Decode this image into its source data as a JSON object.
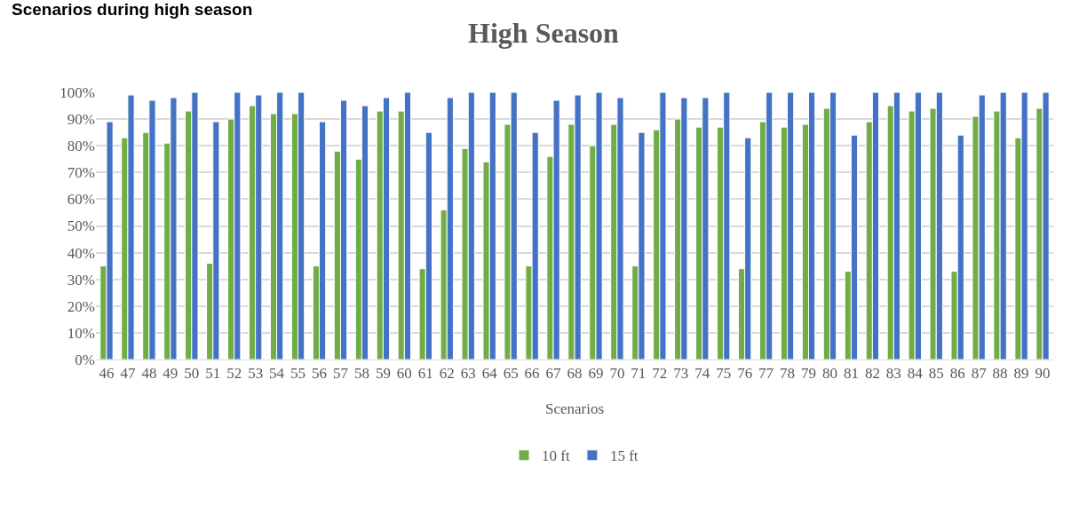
{
  "chart_data": {
    "type": "bar",
    "title": "High Season",
    "xlabel": "Scenarios",
    "annotations": [
      "Scenarios during high season"
    ],
    "categories": [
      "46",
      "47",
      "48",
      "49",
      "50",
      "51",
      "52",
      "53",
      "54",
      "55",
      "56",
      "57",
      "58",
      "59",
      "60",
      "61",
      "62",
      "63",
      "64",
      "65",
      "66",
      "67",
      "68",
      "69",
      "70",
      "71",
      "72",
      "73",
      "74",
      "75",
      "76",
      "77",
      "78",
      "79",
      "80",
      "81",
      "82",
      "83",
      "84",
      "85",
      "86",
      "87",
      "88",
      "89",
      "90"
    ],
    "series": [
      {
        "name": "10 ft",
        "color": "#70ad47",
        "values": [
          35,
          83,
          85,
          81,
          93,
          36,
          90,
          95,
          92,
          92,
          35,
          78,
          75,
          93,
          93,
          34,
          56,
          79,
          74,
          88,
          35,
          76,
          88,
          80,
          88,
          35,
          86,
          90,
          87,
          87,
          34,
          89,
          87,
          88,
          94,
          33,
          89,
          95,
          93,
          94,
          33,
          91,
          93,
          83,
          94
        ]
      },
      {
        "name": "15 ft",
        "color": "#4472c4",
        "values": [
          89,
          99,
          97,
          98,
          100,
          89,
          100,
          99,
          100,
          100,
          89,
          97,
          95,
          98,
          100,
          85,
          98,
          100,
          100,
          100,
          85,
          97,
          99,
          100,
          98,
          85,
          100,
          98,
          98,
          100,
          83,
          100,
          100,
          100,
          100,
          84,
          100,
          100,
          100,
          100,
          84,
          99,
          100,
          100,
          100
        ]
      }
    ],
    "ylim": [
      0,
      100
    ],
    "yticks": [
      {
        "value": 0,
        "label": "0%"
      },
      {
        "value": 10,
        "label": "10%"
      },
      {
        "value": 20,
        "label": "20%"
      },
      {
        "value": 30,
        "label": "30%"
      },
      {
        "value": 40,
        "label": "40%"
      },
      {
        "value": 50,
        "label": "50%"
      },
      {
        "value": 60,
        "label": "60%"
      },
      {
        "value": 70,
        "label": "70%"
      },
      {
        "value": 80,
        "label": "80%"
      },
      {
        "value": 90,
        "label": "90%"
      },
      {
        "value": 100,
        "label": "100%"
      }
    ],
    "grid": "y",
    "legend": "bottom"
  }
}
